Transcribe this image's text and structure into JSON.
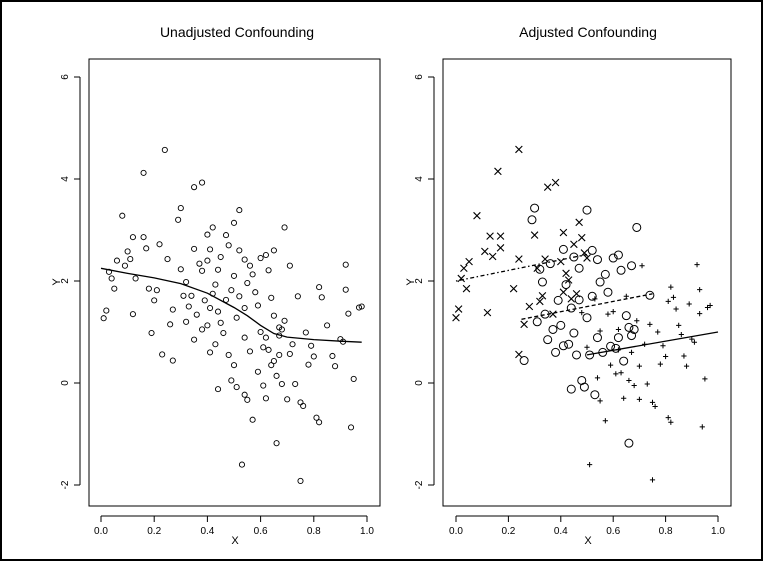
{
  "chart_data": [
    {
      "type": "scatter",
      "title": "Unadjusted Confounding",
      "xlabel": "X",
      "ylabel": "Y",
      "xlim": [
        0.0,
        1.0
      ],
      "ylim": [
        -2,
        6
      ],
      "x_ticks": [
        "0.0",
        "0.2",
        "0.4",
        "0.6",
        "0.8",
        "1.0"
      ],
      "y_ticks": [
        "-2",
        "0",
        "2",
        "4",
        "6"
      ],
      "grid": false,
      "points": [
        [
          0.01,
          1.27
        ],
        [
          0.02,
          1.42
        ],
        [
          0.03,
          2.18
        ],
        [
          0.04,
          2.05
        ],
        [
          0.05,
          1.85
        ],
        [
          0.06,
          2.4
        ],
        [
          0.08,
          3.28
        ],
        [
          0.09,
          2.3
        ],
        [
          0.1,
          2.58
        ],
        [
          0.11,
          2.43
        ],
        [
          0.12,
          2.86
        ],
        [
          0.12,
          1.35
        ],
        [
          0.13,
          2.05
        ],
        [
          0.16,
          4.12
        ],
        [
          0.16,
          2.86
        ],
        [
          0.17,
          2.64
        ],
        [
          0.18,
          1.85
        ],
        [
          0.19,
          0.98
        ],
        [
          0.2,
          1.62
        ],
        [
          0.21,
          1.82
        ],
        [
          0.22,
          2.72
        ],
        [
          0.23,
          0.56
        ],
        [
          0.24,
          4.57
        ],
        [
          0.25,
          2.43
        ],
        [
          0.26,
          1.15
        ],
        [
          0.27,
          0.44
        ],
        [
          0.27,
          1.44
        ],
        [
          0.29,
          3.2
        ],
        [
          0.3,
          3.43
        ],
        [
          0.3,
          2.23
        ],
        [
          0.31,
          1.71
        ],
        [
          0.32,
          1.98
        ],
        [
          0.32,
          1.2
        ],
        [
          0.33,
          1.5
        ],
        [
          0.34,
          1.71
        ],
        [
          0.35,
          3.84
        ],
        [
          0.35,
          2.63
        ],
        [
          0.35,
          0.85
        ],
        [
          0.36,
          1.34
        ],
        [
          0.37,
          2.34
        ],
        [
          0.38,
          3.93
        ],
        [
          0.38,
          2.2
        ],
        [
          0.38,
          1.05
        ],
        [
          0.39,
          1.62
        ],
        [
          0.4,
          2.91
        ],
        [
          0.4,
          2.4
        ],
        [
          0.4,
          1.13
        ],
        [
          0.41,
          2.62
        ],
        [
          0.41,
          1.47
        ],
        [
          0.41,
          0.6
        ],
        [
          0.42,
          3.05
        ],
        [
          0.42,
          1.75
        ],
        [
          0.43,
          1.93
        ],
        [
          0.43,
          0.76
        ],
        [
          0.44,
          2.22
        ],
        [
          0.44,
          1.4
        ],
        [
          0.44,
          -0.12
        ],
        [
          0.45,
          2.47
        ],
        [
          0.45,
          1.18
        ],
        [
          0.46,
          0.98
        ],
        [
          0.47,
          2.9
        ],
        [
          0.47,
          1.63
        ],
        [
          0.48,
          2.7
        ],
        [
          0.48,
          0.55
        ],
        [
          0.49,
          1.82
        ],
        [
          0.49,
          0.05
        ],
        [
          0.5,
          3.14
        ],
        [
          0.5,
          2.1
        ],
        [
          0.5,
          0.35
        ],
        [
          0.51,
          1.28
        ],
        [
          0.51,
          -0.08
        ],
        [
          0.52,
          3.39
        ],
        [
          0.52,
          2.6
        ],
        [
          0.52,
          1.7
        ],
        [
          0.53,
          -1.6
        ],
        [
          0.54,
          2.42
        ],
        [
          0.54,
          1.47
        ],
        [
          0.54,
          0.89
        ],
        [
          0.54,
          -0.23
        ],
        [
          0.55,
          1.96
        ],
        [
          0.55,
          -0.33
        ],
        [
          0.56,
          2.3
        ],
        [
          0.56,
          0.62
        ],
        [
          0.57,
          2.13
        ],
        [
          0.57,
          -0.72
        ],
        [
          0.58,
          1.78
        ],
        [
          0.59,
          0.22
        ],
        [
          0.59,
          1.52
        ],
        [
          0.6,
          2.45
        ],
        [
          0.6,
          1.0
        ],
        [
          0.61,
          0.7
        ],
        [
          0.61,
          -0.05
        ],
        [
          0.62,
          2.51
        ],
        [
          0.62,
          0.89
        ],
        [
          0.62,
          -0.3
        ],
        [
          0.63,
          2.21
        ],
        [
          0.63,
          0.65
        ],
        [
          0.64,
          1.67
        ],
        [
          0.64,
          0.35
        ],
        [
          0.65,
          2.6
        ],
        [
          0.65,
          1.32
        ],
        [
          0.65,
          0.43
        ],
        [
          0.66,
          -1.18
        ],
        [
          0.66,
          0.14
        ],
        [
          0.67,
          1.09
        ],
        [
          0.67,
          0.93
        ],
        [
          0.67,
          0.55
        ],
        [
          0.68,
          1.05
        ],
        [
          0.68,
          -0.02
        ],
        [
          0.69,
          3.05
        ],
        [
          0.69,
          1.22
        ],
        [
          0.7,
          -0.32
        ],
        [
          0.71,
          2.3
        ],
        [
          0.71,
          0.57
        ],
        [
          0.72,
          0.76
        ],
        [
          0.73,
          -0.02
        ],
        [
          0.74,
          1.7
        ],
        [
          0.75,
          -0.38
        ],
        [
          0.75,
          -1.92
        ],
        [
          0.76,
          -0.45
        ],
        [
          0.77,
          0.99
        ],
        [
          0.78,
          0.36
        ],
        [
          0.79,
          0.73
        ],
        [
          0.8,
          0.52
        ],
        [
          0.81,
          -0.68
        ],
        [
          0.82,
          1.88
        ],
        [
          0.82,
          -0.77
        ],
        [
          0.83,
          1.68
        ],
        [
          0.85,
          1.13
        ],
        [
          0.87,
          0.53
        ],
        [
          0.88,
          0.33
        ],
        [
          0.9,
          0.86
        ],
        [
          0.91,
          0.81
        ],
        [
          0.92,
          2.32
        ],
        [
          0.92,
          1.83
        ],
        [
          0.93,
          1.36
        ],
        [
          0.94,
          -0.87
        ],
        [
          0.95,
          0.08
        ],
        [
          0.97,
          1.48
        ],
        [
          0.98,
          1.5
        ]
      ],
      "smooth_line": [
        [
          0.0,
          2.25
        ],
        [
          0.1,
          2.15
        ],
        [
          0.2,
          2.06
        ],
        [
          0.3,
          1.95
        ],
        [
          0.4,
          1.76
        ],
        [
          0.5,
          1.48
        ],
        [
          0.55,
          1.32
        ],
        [
          0.6,
          1.13
        ],
        [
          0.65,
          0.97
        ],
        [
          0.7,
          0.9
        ],
        [
          0.8,
          0.85
        ],
        [
          0.9,
          0.82
        ],
        [
          0.98,
          0.8
        ]
      ]
    },
    {
      "type": "scatter",
      "title": "Adjusted Confounding",
      "xlabel": "X",
      "ylabel": "Y",
      "xlim": [
        0.0,
        1.0
      ],
      "ylim": [
        -2,
        6
      ],
      "x_ticks": [
        "0.0",
        "0.2",
        "0.4",
        "0.6",
        "0.8",
        "1.0"
      ],
      "y_ticks": [
        "-2",
        "0",
        "2",
        "4",
        "6"
      ],
      "grid": false,
      "series": [
        {
          "marker": "x",
          "points": [
            [
              0.0,
              1.28
            ],
            [
              0.01,
              1.45
            ],
            [
              0.02,
              2.05
            ],
            [
              0.03,
              2.25
            ],
            [
              0.04,
              1.85
            ],
            [
              0.05,
              2.38
            ],
            [
              0.08,
              3.28
            ],
            [
              0.11,
              2.58
            ],
            [
              0.12,
              1.38
            ],
            [
              0.13,
              2.88
            ],
            [
              0.14,
              2.48
            ],
            [
              0.16,
              4.15
            ],
            [
              0.17,
              2.65
            ],
            [
              0.17,
              2.88
            ],
            [
              0.22,
              1.85
            ],
            [
              0.24,
              4.58
            ],
            [
              0.24,
              2.43
            ],
            [
              0.24,
              0.56
            ],
            [
              0.26,
              1.15
            ],
            [
              0.28,
              1.5
            ],
            [
              0.3,
              2.9
            ],
            [
              0.31,
              2.25
            ],
            [
              0.32,
              1.6
            ],
            [
              0.33,
              1.71
            ],
            [
              0.34,
              2.43
            ],
            [
              0.35,
              3.84
            ],
            [
              0.37,
              1.35
            ],
            [
              0.38,
              3.93
            ],
            [
              0.4,
              2.38
            ],
            [
              0.41,
              1.78
            ],
            [
              0.41,
              2.95
            ],
            [
              0.42,
              2.15
            ],
            [
              0.43,
              2.02
            ],
            [
              0.44,
              1.65
            ],
            [
              0.45,
              2.72
            ],
            [
              0.46,
              1.75
            ],
            [
              0.47,
              3.15
            ],
            [
              0.48,
              2.85
            ],
            [
              0.49,
              2.55
            ],
            [
              0.5,
              2.45
            ]
          ],
          "line": [
            [
              0.0,
              2.0
            ],
            [
              0.5,
              2.52
            ]
          ]
        },
        {
          "marker": "o",
          "points": [
            [
              0.26,
              0.44
            ],
            [
              0.29,
              3.2
            ],
            [
              0.3,
              3.43
            ],
            [
              0.31,
              1.2
            ],
            [
              0.32,
              2.23
            ],
            [
              0.33,
              1.98
            ],
            [
              0.34,
              1.35
            ],
            [
              0.35,
              0.85
            ],
            [
              0.36,
              2.34
            ],
            [
              0.37,
              1.05
            ],
            [
              0.38,
              0.6
            ],
            [
              0.39,
              1.62
            ],
            [
              0.4,
              1.13
            ],
            [
              0.41,
              2.62
            ],
            [
              0.41,
              0.73
            ],
            [
              0.42,
              1.93
            ],
            [
              0.43,
              0.76
            ],
            [
              0.44,
              1.47
            ],
            [
              0.44,
              -0.12
            ],
            [
              0.45,
              2.47
            ],
            [
              0.45,
              0.98
            ],
            [
              0.46,
              0.55
            ],
            [
              0.47,
              1.63
            ],
            [
              0.47,
              2.25
            ],
            [
              0.48,
              0.05
            ],
            [
              0.49,
              -0.08
            ],
            [
              0.5,
              3.39
            ],
            [
              0.5,
              1.28
            ],
            [
              0.51,
              0.55
            ],
            [
              0.52,
              2.6
            ],
            [
              0.52,
              1.7
            ],
            [
              0.53,
              -0.23
            ],
            [
              0.54,
              2.42
            ],
            [
              0.54,
              0.89
            ],
            [
              0.55,
              1.98
            ],
            [
              0.56,
              0.6
            ],
            [
              0.57,
              2.13
            ],
            [
              0.58,
              1.78
            ],
            [
              0.59,
              0.72
            ],
            [
              0.6,
              2.45
            ],
            [
              0.61,
              0.68
            ],
            [
              0.62,
              0.89
            ],
            [
              0.62,
              2.51
            ],
            [
              0.63,
              2.21
            ],
            [
              0.64,
              0.43
            ],
            [
              0.65,
              1.32
            ],
            [
              0.66,
              -1.18
            ],
            [
              0.66,
              1.09
            ],
            [
              0.67,
              0.93
            ],
            [
              0.67,
              2.3
            ],
            [
              0.68,
              1.05
            ],
            [
              0.69,
              3.05
            ],
            [
              0.74,
              1.72
            ]
          ],
          "line": [
            [
              0.25,
              1.25
            ],
            [
              0.75,
              1.75
            ]
          ]
        },
        {
          "marker": "+",
          "points": [
            [
              0.48,
              1.38
            ],
            [
              0.5,
              0.7
            ],
            [
              0.51,
              -1.6
            ],
            [
              0.53,
              1.65
            ],
            [
              0.54,
              0.1
            ],
            [
              0.55,
              1.02
            ],
            [
              0.55,
              -0.35
            ],
            [
              0.57,
              -0.74
            ],
            [
              0.58,
              1.35
            ],
            [
              0.59,
              0.35
            ],
            [
              0.6,
              1.4
            ],
            [
              0.61,
              0.18
            ],
            [
              0.62,
              1.05
            ],
            [
              0.62,
              0.65
            ],
            [
              0.63,
              0.2
            ],
            [
              0.64,
              -0.3
            ],
            [
              0.65,
              1.7
            ],
            [
              0.66,
              0.05
            ],
            [
              0.67,
              0.6
            ],
            [
              0.68,
              -0.05
            ],
            [
              0.69,
              1.22
            ],
            [
              0.7,
              0.33
            ],
            [
              0.7,
              -0.32
            ],
            [
              0.71,
              2.3
            ],
            [
              0.72,
              0.76
            ],
            [
              0.73,
              -0.02
            ],
            [
              0.74,
              1.15
            ],
            [
              0.75,
              -0.38
            ],
            [
              0.75,
              -1.9
            ],
            [
              0.76,
              -0.46
            ],
            [
              0.77,
              1.0
            ],
            [
              0.78,
              0.37
            ],
            [
              0.79,
              0.73
            ],
            [
              0.8,
              0.52
            ],
            [
              0.81,
              1.6
            ],
            [
              0.81,
              -0.68
            ],
            [
              0.82,
              1.88
            ],
            [
              0.82,
              -0.77
            ],
            [
              0.83,
              1.68
            ],
            [
              0.84,
              1.45
            ],
            [
              0.85,
              1.13
            ],
            [
              0.86,
              0.95
            ],
            [
              0.87,
              0.53
            ],
            [
              0.88,
              0.33
            ],
            [
              0.89,
              1.55
            ],
            [
              0.9,
              0.86
            ],
            [
              0.91,
              0.8
            ],
            [
              0.92,
              2.32
            ],
            [
              0.93,
              1.83
            ],
            [
              0.93,
              1.36
            ],
            [
              0.94,
              -0.86
            ],
            [
              0.95,
              0.08
            ],
            [
              0.96,
              1.48
            ],
            [
              0.97,
              1.52
            ]
          ],
          "line": [
            [
              0.5,
              0.55
            ],
            [
              1.0,
              1.0
            ]
          ]
        }
      ]
    }
  ]
}
